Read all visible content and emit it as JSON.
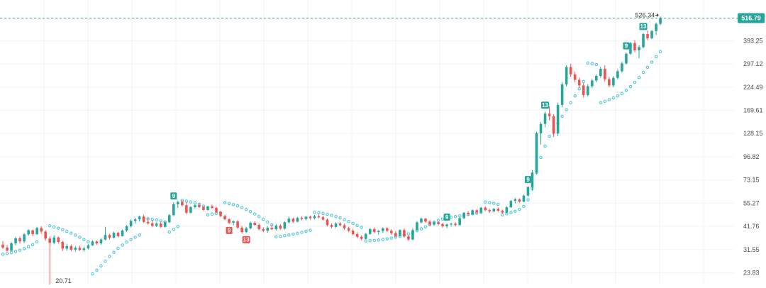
{
  "colors": {
    "up": "#26a69a",
    "down": "#ef5350",
    "sar": "#40c4d8",
    "last_line": "#26a69a",
    "badge_up": "#26a69a",
    "badge_down": "#ef5350",
    "grid": "#f0f3f7",
    "axis_text": "#4a4a4a"
  },
  "chart_data": {
    "type": "candlestick",
    "scale": "log",
    "grid": true,
    "y_ticks": [
      "516.79",
      "393.25",
      "297.12",
      "224.49",
      "169.61",
      "128.15",
      "96.82",
      "73.15",
      "55.27",
      "41.76",
      "31.55",
      "23.83"
    ],
    "ylim": [
      22,
      560
    ],
    "last_price": "516.79",
    "high_label": "526.34",
    "low_label": "20.71",
    "candles": [
      [
        33.5,
        35.0,
        31.8,
        32.3
      ],
      [
        32.3,
        33.2,
        30.8,
        31.1
      ],
      [
        31.1,
        34.5,
        30.9,
        34.0
      ],
      [
        34.0,
        36.8,
        33.2,
        36.1
      ],
      [
        36.1,
        36.9,
        33.9,
        34.8
      ],
      [
        34.8,
        38.5,
        34.0,
        37.9
      ],
      [
        37.9,
        40.4,
        37.2,
        39.8
      ],
      [
        39.8,
        40.2,
        37.1,
        38.0
      ],
      [
        38.0,
        41.5,
        37.6,
        40.9
      ],
      [
        40.9,
        41.8,
        38.2,
        39.2
      ],
      [
        39.2,
        39.9,
        35.1,
        36.0
      ],
      [
        36.0,
        37.0,
        20.71,
        34.2
      ],
      [
        34.2,
        37.4,
        33.6,
        36.5
      ],
      [
        36.5,
        37.0,
        33.9,
        34.6
      ],
      [
        34.6,
        35.1,
        31.0,
        31.9
      ],
      [
        31.9,
        33.8,
        31.2,
        32.9
      ],
      [
        32.9,
        33.5,
        30.9,
        31.5
      ],
      [
        31.5,
        32.9,
        30.8,
        32.2
      ],
      [
        32.2,
        33.1,
        31.0,
        31.4
      ],
      [
        31.4,
        32.6,
        30.7,
        32.0
      ],
      [
        32.0,
        33.7,
        31.6,
        33.2
      ],
      [
        33.2,
        35.3,
        32.9,
        34.8
      ],
      [
        34.8,
        35.2,
        33.4,
        34.0
      ],
      [
        34.0,
        36.2,
        33.5,
        35.6
      ],
      [
        35.6,
        41.5,
        35.2,
        37.6
      ],
      [
        37.6,
        38.1,
        35.7,
        36.4
      ],
      [
        36.4,
        39.2,
        36.0,
        38.6
      ],
      [
        38.6,
        39.0,
        36.5,
        37.1
      ],
      [
        37.1,
        40.2,
        36.9,
        39.7
      ],
      [
        39.7,
        42.4,
        39.0,
        41.8
      ],
      [
        41.8,
        45.4,
        41.2,
        44.6
      ],
      [
        44.6,
        46.2,
        43.1,
        45.5
      ],
      [
        45.5,
        47.6,
        44.2,
        47.0
      ],
      [
        47.0,
        48.1,
        43.5,
        44.1
      ],
      [
        44.1,
        46.3,
        42.6,
        43.3
      ],
      [
        43.3,
        45.0,
        41.3,
        42.0
      ],
      [
        42.0,
        44.0,
        41.4,
        43.2
      ],
      [
        43.2,
        44.1,
        40.9,
        41.5
      ],
      [
        41.5,
        44.5,
        41.0,
        43.9
      ],
      [
        43.9,
        48.4,
        43.5,
        47.8
      ],
      [
        47.8,
        55.8,
        47.2,
        54.5
      ],
      [
        54.5,
        56.9,
        52.2,
        56.1
      ],
      [
        56.1,
        57.3,
        53.0,
        53.9
      ],
      [
        53.9,
        55.7,
        48.3,
        49.2
      ],
      [
        49.2,
        53.2,
        48.7,
        52.7
      ],
      [
        52.7,
        54.6,
        51.8,
        53.9
      ],
      [
        53.9,
        55.6,
        52.1,
        52.7
      ],
      [
        52.7,
        53.4,
        50.2,
        50.9
      ],
      [
        50.9,
        53.7,
        50.4,
        53.1
      ],
      [
        53.1,
        54.3,
        51.5,
        52.2
      ],
      [
        52.2,
        53.0,
        48.9,
        49.6
      ],
      [
        49.6,
        50.3,
        46.6,
        47.3
      ],
      [
        47.3,
        48.0,
        44.9,
        45.5
      ],
      [
        45.5,
        46.1,
        42.9,
        43.6
      ],
      [
        43.6,
        45.0,
        42.3,
        44.3
      ],
      [
        44.3,
        45.0,
        40.4,
        41.1
      ],
      [
        41.1,
        42.0,
        38.2,
        39.0
      ],
      [
        39.0,
        41.5,
        38.4,
        40.8
      ],
      [
        40.8,
        44.2,
        40.2,
        43.6
      ],
      [
        43.6,
        44.4,
        41.9,
        42.5
      ],
      [
        42.5,
        43.2,
        39.8,
        40.4
      ],
      [
        40.4,
        41.3,
        38.9,
        39.6
      ],
      [
        39.6,
        41.8,
        38.7,
        41.0
      ],
      [
        41.0,
        42.7,
        39.9,
        40.3
      ],
      [
        40.3,
        42.9,
        39.7,
        42.1
      ],
      [
        42.1,
        42.9,
        40.0,
        40.6
      ],
      [
        40.6,
        44.5,
        40.1,
        43.9
      ],
      [
        43.9,
        47.0,
        43.2,
        45.8
      ],
      [
        45.8,
        46.4,
        43.5,
        44.2
      ],
      [
        44.2,
        46.8,
        43.8,
        46.2
      ],
      [
        46.2,
        47.1,
        44.9,
        45.6
      ],
      [
        45.6,
        47.3,
        44.8,
        46.9
      ],
      [
        46.9,
        47.5,
        45.3,
        46.1
      ],
      [
        46.1,
        48.0,
        45.4,
        47.2
      ],
      [
        47.2,
        48.3,
        46.0,
        46.6
      ],
      [
        46.6,
        47.5,
        44.9,
        45.3
      ],
      [
        45.3,
        46.0,
        41.7,
        42.4
      ],
      [
        42.4,
        43.3,
        40.8,
        41.5
      ],
      [
        41.5,
        43.9,
        41.0,
        43.2
      ],
      [
        43.2,
        44.0,
        41.8,
        42.3
      ],
      [
        42.3,
        43.1,
        40.1,
        40.8
      ],
      [
        40.8,
        41.6,
        39.0,
        39.6
      ],
      [
        39.6,
        40.5,
        37.4,
        38.0
      ],
      [
        38.0,
        38.9,
        36.1,
        36.8
      ],
      [
        36.8,
        37.5,
        35.2,
        35.9
      ],
      [
        35.9,
        38.6,
        35.6,
        38.1
      ],
      [
        38.1,
        40.9,
        37.7,
        40.4
      ],
      [
        40.4,
        41.2,
        38.4,
        39.0
      ],
      [
        39.0,
        40.0,
        37.8,
        39.5
      ],
      [
        39.5,
        41.3,
        38.6,
        40.7
      ],
      [
        40.7,
        41.5,
        38.9,
        39.6
      ],
      [
        39.6,
        40.3,
        37.7,
        38.5
      ],
      [
        38.5,
        39.4,
        36.6,
        37.1
      ],
      [
        37.1,
        40.3,
        36.9,
        39.9
      ],
      [
        39.9,
        40.8,
        36.4,
        37.0
      ],
      [
        37.0,
        37.6,
        35.0,
        35.6
      ],
      [
        35.6,
        40.8,
        35.3,
        39.9
      ],
      [
        39.9,
        44.5,
        39.4,
        43.8
      ],
      [
        43.8,
        46.5,
        43.2,
        45.8
      ],
      [
        45.8,
        46.3,
        43.6,
        44.2
      ],
      [
        44.2,
        45.1,
        41.8,
        42.6
      ],
      [
        42.6,
        44.5,
        41.9,
        43.9
      ],
      [
        43.9,
        44.6,
        42.2,
        42.9
      ],
      [
        42.9,
        43.6,
        41.1,
        41.8
      ],
      [
        41.8,
        43.2,
        40.9,
        42.7
      ],
      [
        42.7,
        43.6,
        41.6,
        43.1
      ],
      [
        43.1,
        43.9,
        41.7,
        42.4
      ],
      [
        42.4,
        46.7,
        42.0,
        46.1
      ],
      [
        46.1,
        49.7,
        45.5,
        49.2
      ],
      [
        49.2,
        50.1,
        47.6,
        48.3
      ],
      [
        48.3,
        51.3,
        47.9,
        50.7
      ],
      [
        50.7,
        51.4,
        48.6,
        49.4
      ],
      [
        49.4,
        52.9,
        48.9,
        52.3
      ],
      [
        52.3,
        53.1,
        50.1,
        50.8
      ],
      [
        50.8,
        51.6,
        49.2,
        50.0
      ],
      [
        50.0,
        52.2,
        49.4,
        51.6
      ],
      [
        51.6,
        52.4,
        49.8,
        50.4
      ],
      [
        50.4,
        51.2,
        48.6,
        49.3
      ],
      [
        49.3,
        53.2,
        48.8,
        52.6
      ],
      [
        52.6,
        57.4,
        52.1,
        56.8
      ],
      [
        56.8,
        58.8,
        55.0,
        57.8
      ],
      [
        57.8,
        58.6,
        55.6,
        56.2
      ],
      [
        56.2,
        61.2,
        55.8,
        60.5
      ],
      [
        60.5,
        68.0,
        59.8,
        67.0
      ],
      [
        67.0,
        82.5,
        64.0,
        80.0
      ],
      [
        80.0,
        131.0,
        78.0,
        128.5
      ],
      [
        128.5,
        147.0,
        112.0,
        144.0
      ],
      [
        144.0,
        167.0,
        138.0,
        163.0
      ],
      [
        163.0,
        178.0,
        150.0,
        158.0
      ],
      [
        158.0,
        162.0,
        123.0,
        128.0
      ],
      [
        128.0,
        186.0,
        124.0,
        181.0
      ],
      [
        181.0,
        238.0,
        176.0,
        232.0
      ],
      [
        232.0,
        292.0,
        226.0,
        286.0
      ],
      [
        286.0,
        298.0,
        254.0,
        262.0
      ],
      [
        262.0,
        270.0,
        238.0,
        245.0
      ],
      [
        245.0,
        252.0,
        222.0,
        229.0
      ],
      [
        229.0,
        236.0,
        198.0,
        204.0
      ],
      [
        204.0,
        232.0,
        200.0,
        227.0
      ],
      [
        227.0,
        248.0,
        222.0,
        243.0
      ],
      [
        243.0,
        262.0,
        238.0,
        257.0
      ],
      [
        257.0,
        286.0,
        251.0,
        280.0
      ],
      [
        280.0,
        292.0,
        240.0,
        247.0
      ],
      [
        247.0,
        254.0,
        224.0,
        229.0
      ],
      [
        229.0,
        256.0,
        224.0,
        251.0
      ],
      [
        251.0,
        278.0,
        246.0,
        272.0
      ],
      [
        272.0,
        305.0,
        267.0,
        299.0
      ],
      [
        299.0,
        342.0,
        294.0,
        336.0
      ],
      [
        336.0,
        388.0,
        331.0,
        382.0
      ],
      [
        382.0,
        396.0,
        342.0,
        350.0
      ],
      [
        350.0,
        372.0,
        318.0,
        364.0
      ],
      [
        364.0,
        432.0,
        359.0,
        426.0
      ],
      [
        426.0,
        446.0,
        396.0,
        405.0
      ],
      [
        405.0,
        448.0,
        401.0,
        442.0
      ],
      [
        442.0,
        490.0,
        422.0,
        482.0
      ],
      [
        482.0,
        526.34,
        474.0,
        516.79
      ]
    ],
    "sar": [
      [
        0,
        29.8
      ],
      [
        1,
        30.1
      ],
      [
        2,
        30.4
      ],
      [
        3,
        30.8
      ],
      [
        4,
        31.3
      ],
      [
        5,
        31.9
      ],
      [
        6,
        32.6
      ],
      [
        7,
        33.5
      ],
      [
        8,
        34.6
      ],
      [
        11,
        42.0
      ],
      [
        12,
        41.4
      ],
      [
        13,
        40.8
      ],
      [
        14,
        40.1
      ],
      [
        15,
        39.3
      ],
      [
        16,
        38.5
      ],
      [
        17,
        37.6
      ],
      [
        18,
        36.6
      ],
      [
        19,
        35.6
      ],
      [
        20,
        34.6
      ],
      [
        21,
        23.5
      ],
      [
        22,
        24.6
      ],
      [
        23,
        25.9
      ],
      [
        24,
        27.4
      ],
      [
        25,
        29.0
      ],
      [
        26,
        30.5
      ],
      [
        27,
        32.0
      ],
      [
        28,
        33.3
      ],
      [
        29,
        34.5
      ],
      [
        30,
        35.6
      ],
      [
        31,
        36.6
      ],
      [
        32,
        37.6
      ],
      [
        33,
        46.0
      ],
      [
        34,
        45.8
      ],
      [
        35,
        45.5
      ],
      [
        36,
        45.1
      ],
      [
        37,
        44.6
      ],
      [
        38,
        44.0
      ],
      [
        39,
        39.0
      ],
      [
        40,
        40.2
      ],
      [
        41,
        41.6
      ],
      [
        42,
        57.0
      ],
      [
        43,
        56.6
      ],
      [
        44,
        56.1
      ],
      [
        45,
        55.4
      ],
      [
        46,
        54.4
      ],
      [
        47,
        53.3
      ],
      [
        48,
        48.0
      ],
      [
        49,
        48.4
      ],
      [
        50,
        48.8
      ],
      [
        51,
        49.2
      ],
      [
        52,
        55.5
      ],
      [
        53,
        55.0
      ],
      [
        54,
        54.3
      ],
      [
        55,
        53.5
      ],
      [
        56,
        52.4
      ],
      [
        57,
        51.2
      ],
      [
        58,
        49.9
      ],
      [
        59,
        48.5
      ],
      [
        60,
        47.0
      ],
      [
        61,
        45.5
      ],
      [
        62,
        44.0
      ],
      [
        63,
        42.5
      ],
      [
        64,
        36.8
      ],
      [
        65,
        37.0
      ],
      [
        66,
        37.3
      ],
      [
        67,
        37.6
      ],
      [
        68,
        38.0
      ],
      [
        69,
        38.4
      ],
      [
        70,
        38.8
      ],
      [
        71,
        39.3
      ],
      [
        72,
        39.8
      ],
      [
        73,
        49.5
      ],
      [
        74,
        49.2
      ],
      [
        75,
        48.8
      ],
      [
        76,
        48.3
      ],
      [
        77,
        47.7
      ],
      [
        78,
        47.0
      ],
      [
        79,
        46.2
      ],
      [
        80,
        45.3
      ],
      [
        81,
        44.3
      ],
      [
        82,
        43.3
      ],
      [
        83,
        42.2
      ],
      [
        84,
        41.2
      ],
      [
        85,
        35.0
      ],
      [
        86,
        35.1
      ],
      [
        87,
        35.2
      ],
      [
        88,
        35.4
      ],
      [
        89,
        35.6
      ],
      [
        90,
        35.9
      ],
      [
        91,
        36.2
      ],
      [
        92,
        36.6
      ],
      [
        93,
        37.0
      ],
      [
        94,
        37.5
      ],
      [
        95,
        38.1
      ],
      [
        96,
        38.8
      ],
      [
        97,
        39.6
      ],
      [
        98,
        40.5
      ],
      [
        99,
        41.5
      ],
      [
        100,
        42.6
      ],
      [
        101,
        43.8
      ],
      [
        102,
        44.9
      ],
      [
        103,
        45.6
      ],
      [
        104,
        46.1
      ],
      [
        105,
        46.6
      ],
      [
        106,
        47.0
      ],
      [
        107,
        47.4
      ],
      [
        108,
        47.8
      ],
      [
        109,
        48.2
      ],
      [
        110,
        48.6
      ],
      [
        111,
        49.0
      ],
      [
        112,
        49.4
      ],
      [
        113,
        56.0
      ],
      [
        114,
        55.6
      ],
      [
        115,
        55.1
      ],
      [
        116,
        54.5
      ],
      [
        117,
        48.0
      ],
      [
        118,
        48.6
      ],
      [
        119,
        49.3
      ],
      [
        120,
        50.1
      ],
      [
        121,
        51.3
      ],
      [
        122,
        53.2
      ],
      [
        123,
        57.5
      ],
      [
        124,
        66.0
      ],
      [
        125,
        80.0
      ],
      [
        126,
        96.0
      ],
      [
        127,
        110.0
      ],
      [
        128,
        124.0
      ],
      [
        129,
        134.0
      ],
      [
        130,
        145.0
      ],
      [
        131,
        158.0
      ],
      [
        132,
        171.0
      ],
      [
        133,
        186.0
      ],
      [
        134,
        202.0
      ],
      [
        135,
        220.0
      ],
      [
        136,
        240.0
      ],
      [
        137,
        300.0
      ],
      [
        138,
        298.0
      ],
      [
        139,
        295.0
      ],
      [
        140,
        186.0
      ],
      [
        141,
        189.0
      ],
      [
        142,
        193.0
      ],
      [
        143,
        197.0
      ],
      [
        144,
        202.0
      ],
      [
        145,
        208.0
      ],
      [
        146,
        216.0
      ],
      [
        147,
        226.0
      ],
      [
        148,
        238.0
      ],
      [
        149,
        252.0
      ],
      [
        150,
        268.0
      ],
      [
        151,
        285.0
      ],
      [
        152,
        304.0
      ],
      [
        153,
        324.0
      ],
      [
        154,
        345.0
      ]
    ],
    "markers": [
      {
        "index": 40,
        "label": "9",
        "type": "up"
      },
      {
        "index": 53,
        "label": "9",
        "type": "down"
      },
      {
        "index": 57,
        "label": "13",
        "type": "down"
      },
      {
        "index": 104,
        "label": "9",
        "type": "up"
      },
      {
        "index": 123,
        "label": "9",
        "type": "up"
      },
      {
        "index": 127,
        "label": "13",
        "type": "up"
      },
      {
        "index": 146,
        "label": "9",
        "type": "up"
      },
      {
        "index": 150,
        "label": "13",
        "type": "up"
      }
    ]
  }
}
